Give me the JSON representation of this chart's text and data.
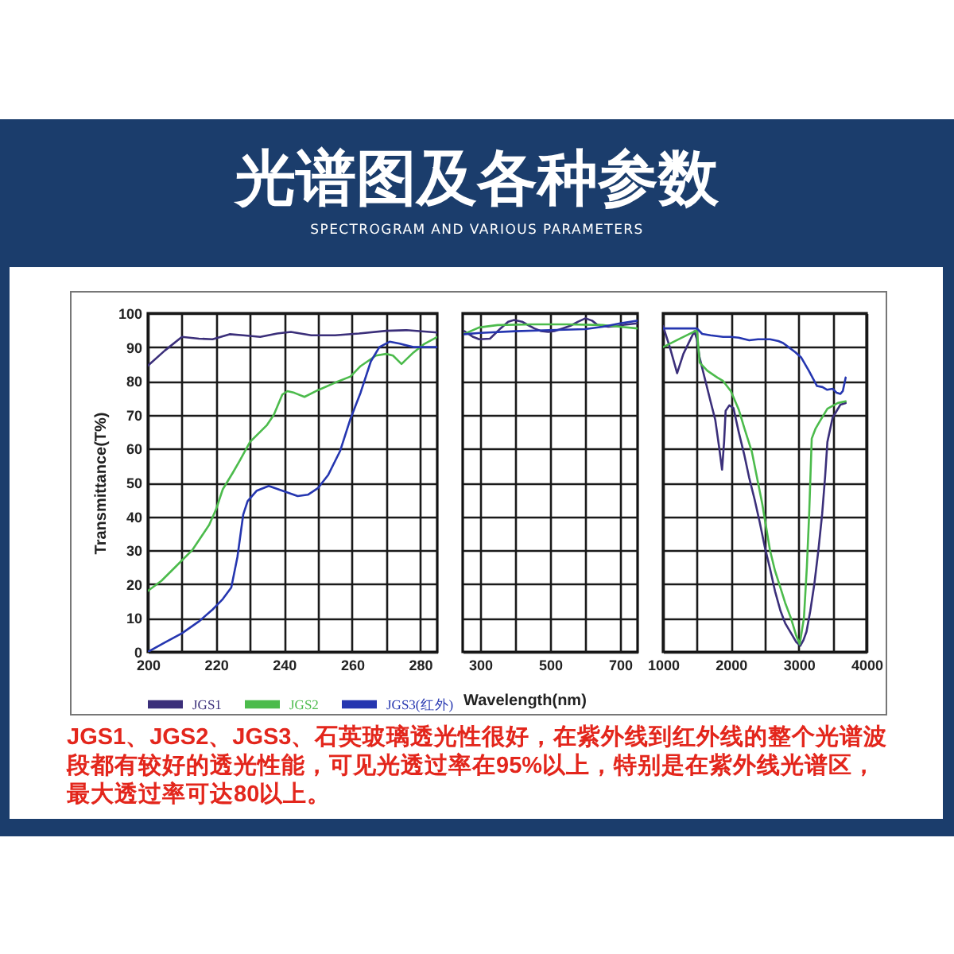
{
  "chart_data": [
    {
      "type": "line",
      "title": "光谱图及各种参数",
      "subtitle": "SPECTROGRAM AND VARIOUS PARAMETERS",
      "ylabel": "Transmittance(T%)",
      "legend": "bottom left",
      "grid": true,
      "annotations": [
        "JGS1、JGS2、JGS3、石英玻璃透光性很好，在紫外线到红外线的整个光谱波段都有较好的透光性能，可见光透过率在95%以上，特别是在紫外线光谱区，最大透过率可达80以上。"
      ],
      "xlim": [
        200,
        285
      ],
      "xticks": [
        200,
        {
          "value": 210,
          "label": null
        },
        220,
        {
          "value": 230,
          "label": null
        },
        240,
        {
          "value": 250,
          "label": null
        },
        260,
        {
          "value": 270,
          "label": null
        },
        280
      ],
      "ylim": [
        0,
        100
      ],
      "yticks": [
        0,
        10,
        20,
        30,
        40,
        50,
        60,
        70,
        80,
        90,
        100
      ],
      "series": [
        {
          "name": "JGS1",
          "color": "#3b2f7a",
          "x": [
            200,
            205,
            210,
            215,
            219,
            224,
            228,
            233,
            238,
            242,
            248,
            255,
            262,
            270,
            276,
            285
          ],
          "values": [
            84.5,
            89,
            93,
            92.5,
            92.3,
            93.8,
            93.5,
            93,
            94,
            94.5,
            93.5,
            93.5,
            94,
            94.8,
            95,
            94.3
          ]
        },
        {
          "name": "JGS2",
          "color": "#4cbb4c",
          "x": [
            200,
            204,
            208,
            213,
            218,
            220,
            222,
            225,
            227,
            230,
            233,
            235,
            237,
            239.5,
            241,
            243,
            246,
            250,
            255,
            259.5,
            262.5,
            267,
            270,
            272,
            274.5,
            278,
            281,
            285
          ],
          "values": [
            18,
            21,
            25,
            30,
            37.5,
            42,
            48,
            53,
            56.5,
            62,
            65,
            67,
            70,
            76,
            77,
            76.5,
            75.3,
            77.3,
            79.5,
            81.3,
            84.4,
            87.5,
            88,
            87.5,
            85,
            88.4,
            90.8,
            93
          ]
        },
        {
          "name": "JGS3(红外)",
          "color": "#2536b0",
          "x": [
            200,
            205,
            210,
            215,
            219,
            222,
            224.5,
            226.3,
            228,
            229.3,
            232,
            235.5,
            239.5,
            244,
            247,
            250,
            253,
            256.5,
            259.5,
            262.5,
            265.5,
            268,
            271,
            274,
            278,
            285
          ],
          "values": [
            0,
            2.8,
            5.5,
            9,
            12.5,
            15.6,
            19,
            28,
            40.5,
            44.5,
            47.6,
            49,
            47.6,
            46,
            46.4,
            48.4,
            52.3,
            59.4,
            68.8,
            76.6,
            85.8,
            90,
            91.6,
            91,
            90,
            90
          ]
        }
      ]
    },
    {
      "type": "line",
      "xlabel": "Wavelength(nm)",
      "grid": true,
      "tick_labels": "x",
      "xlim": [
        250,
        750
      ],
      "xticks": [
        300,
        {
          "value": 400,
          "label": null
        },
        500,
        {
          "value": 600,
          "label": null
        },
        700
      ],
      "ylim": [
        0,
        100
      ],
      "yticks": [
        0,
        10,
        20,
        30,
        40,
        50,
        60,
        70,
        80,
        90,
        100
      ],
      "series": [
        {
          "color": "#3b2f7a",
          "x": [
            255,
            280,
            297,
            328,
            358,
            380,
            397,
            420,
            435,
            455,
            474,
            495,
            512,
            535,
            558,
            580,
            601,
            620,
            635,
            666,
            690,
            712,
            750
          ],
          "values": [
            94.7,
            93,
            92.3,
            92.5,
            95.5,
            97.5,
            98,
            97.5,
            96.6,
            95.5,
            94.7,
            94.5,
            94.7,
            95.5,
            96.3,
            97.5,
            98.5,
            97.8,
            96.6,
            96,
            96.2,
            96.6,
            97
          ]
        },
        {
          "color": "#4cbb4c",
          "x": [
            255,
            297,
            350,
            450,
            550,
            650,
            700,
            750
          ],
          "values": [
            93.9,
            95.8,
            96.5,
            96.7,
            96.7,
            96.5,
            96,
            95.5
          ]
        },
        {
          "color": "#2536b0",
          "x": [
            255,
            300,
            400,
            500,
            600,
            650,
            700,
            750
          ],
          "values": [
            93.8,
            94.2,
            94.7,
            95,
            95.3,
            96,
            97,
            97.8
          ]
        }
      ]
    },
    {
      "type": "line",
      "grid": true,
      "tick_labels": "x",
      "xlim": [
        1000,
        4000
      ],
      "xticks": [
        1000,
        {
          "value": 1500,
          "label": null
        },
        2000,
        {
          "value": 2500,
          "label": null
        },
        3000,
        {
          "value": 3500,
          "label": null
        },
        4000
      ],
      "ylim": [
        0,
        100
      ],
      "yticks": [
        0,
        10,
        20,
        30,
        40,
        50,
        60,
        70,
        80,
        90,
        100
      ],
      "series": [
        {
          "color": "#3b2f7a",
          "x": [
            1000,
            1100,
            1208,
            1300,
            1462,
            1500,
            1538,
            1615,
            1700,
            1770,
            1830,
            1870,
            1900,
            1923,
            1977,
            2038,
            2115,
            2200,
            2270,
            2350,
            2423,
            2500,
            2577,
            2650,
            2730,
            2800,
            2885,
            2960,
            3023,
            3070,
            3115,
            3170,
            3230,
            3290,
            3346,
            3390,
            3423,
            3500,
            3615,
            3692
          ],
          "values": [
            96.2,
            90,
            82.3,
            88,
            94.7,
            92.3,
            87,
            80.8,
            74,
            68.5,
            60,
            53.8,
            62,
            71.2,
            72.8,
            72,
            65,
            58,
            51.4,
            45,
            38.5,
            31,
            24.6,
            18,
            12.2,
            8.5,
            5.6,
            3,
            1.8,
            3.5,
            6,
            12,
            20,
            30,
            40.8,
            52,
            62,
            69.2,
            73,
            73.5
          ]
        },
        {
          "color": "#4cbb4c",
          "x": [
            1000,
            1250,
            1500,
            1540,
            1654,
            1800,
            1885,
            2000,
            2115,
            2200,
            2308,
            2400,
            2462,
            2577,
            2650,
            2730,
            2800,
            2885,
            2960,
            3015,
            3077,
            3120,
            3154,
            3192,
            3250,
            3308,
            3423,
            3577,
            3692
          ],
          "values": [
            90,
            92.5,
            95,
            85.4,
            83,
            81,
            80,
            77,
            71.6,
            66,
            59.2,
            50,
            43.8,
            30,
            24,
            19,
            14.5,
            10,
            5,
            2.3,
            10,
            25,
            40.6,
            63,
            66,
            68,
            71.8,
            73.5,
            74
          ]
        },
        {
          "color": "#2536b0",
          "x": [
            1000,
            1250,
            1500,
            1577,
            1700,
            1885,
            2000,
            2115,
            2270,
            2400,
            2577,
            2700,
            2770,
            2850,
            2950,
            3038,
            3150,
            3270,
            3350,
            3420,
            3500,
            3560,
            3615,
            3650,
            3692
          ],
          "values": [
            95.5,
            95.5,
            95.5,
            93.9,
            93.5,
            93,
            93,
            92.8,
            92,
            92.3,
            92.3,
            91.8,
            91.2,
            90,
            88.5,
            86.9,
            83,
            78.5,
            78.2,
            77.4,
            77.7,
            76.5,
            76.2,
            77,
            81
          ]
        }
      ]
    }
  ]
}
